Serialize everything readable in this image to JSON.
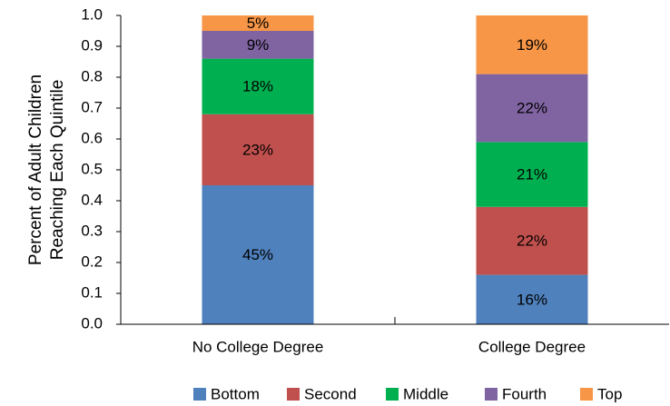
{
  "chart_data": {
    "type": "stacked_bar",
    "ylabel": [
      "Percent of Adult Children",
      "Reaching Each Quintile"
    ],
    "categories": [
      "No College Degree",
      "College Degree"
    ],
    "series": [
      {
        "name": "Bottom",
        "color": "#4f81bd",
        "values": [
          0.45,
          0.16
        ],
        "value_labels": [
          "45%",
          "16%"
        ]
      },
      {
        "name": "Second",
        "color": "#c0504d",
        "values": [
          0.23,
          0.22
        ],
        "value_labels": [
          "23%",
          "22%"
        ]
      },
      {
        "name": "Middle",
        "color": "#00b050",
        "values": [
          0.18,
          0.21
        ],
        "value_labels": [
          "18%",
          "21%"
        ]
      },
      {
        "name": "Fourth",
        "color": "#8064a2",
        "values": [
          0.09,
          0.22
        ],
        "value_labels": [
          "9%",
          "22%"
        ]
      },
      {
        "name": "Top",
        "color": "#f79646",
        "values": [
          0.05,
          0.19
        ],
        "value_labels": [
          "5%",
          "19%"
        ]
      }
    ],
    "ylim": [
      0,
      1
    ],
    "yticks": [
      {
        "value": 0,
        "label": "0.0"
      },
      0.1,
      0.2,
      0.3,
      0.4,
      0.5,
      0.6,
      0.7,
      0.8,
      0.9,
      {
        "value": 1,
        "label": "1.0"
      }
    ]
  }
}
